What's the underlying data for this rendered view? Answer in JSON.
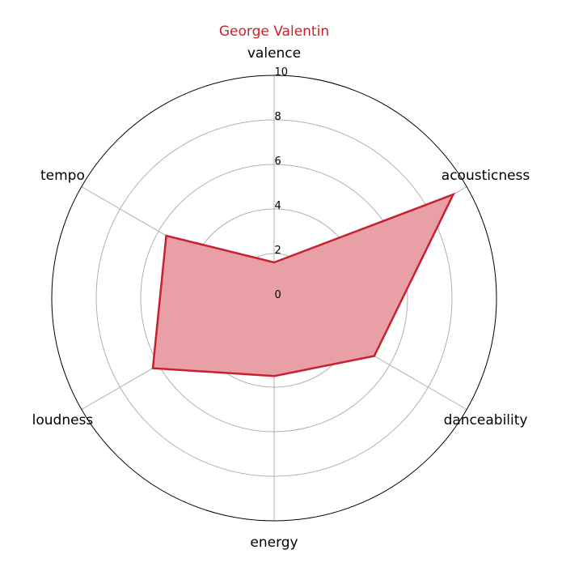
{
  "chart_data": {
    "type": "radar",
    "title": "George Valentin",
    "axes": [
      "valence",
      "acousticness",
      "danceability",
      "energy",
      "loudness",
      "tempo"
    ],
    "series": [
      {
        "name": "George Valentin",
        "values": [
          1.6,
          9.3,
          5.2,
          3.5,
          6.3,
          5.6
        ]
      }
    ],
    "rlim": [
      0,
      10
    ],
    "rticks": [
      0,
      2,
      4,
      6,
      8,
      10
    ],
    "grid": true,
    "colors": {
      "line": "#c8202e",
      "fill": "#e8a0a6",
      "title": "#c8202e",
      "grid": "#b0b0b0",
      "outer": "#000000"
    }
  }
}
